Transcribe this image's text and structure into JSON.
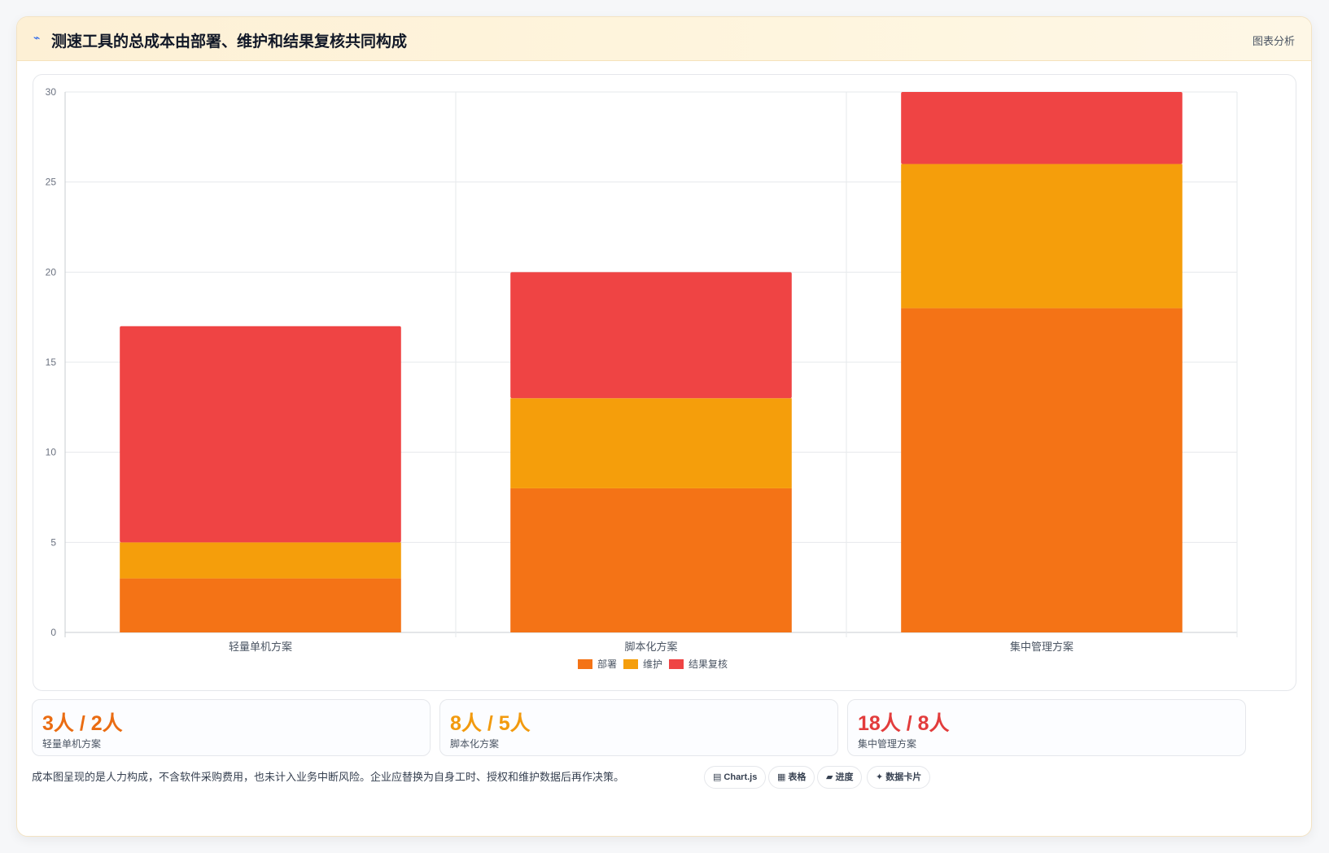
{
  "header": {
    "title": "测速工具的总成本由部署、维护和结果复核共同构成",
    "tag": "图表分析"
  },
  "chart_data": {
    "type": "bar",
    "stacked": true,
    "categories": [
      "轻量单机方案",
      "脚本化方案",
      "集中管理方案"
    ],
    "series": [
      {
        "name": "部署",
        "color": "#f47316",
        "values": [
          3,
          8,
          18
        ]
      },
      {
        "name": "维护",
        "color": "#f59e0b",
        "values": [
          2,
          5,
          8
        ]
      },
      {
        "name": "结果复核",
        "color": "#ef4444",
        "values": [
          12,
          7,
          4
        ]
      }
    ],
    "ylim": [
      0,
      30
    ],
    "yticks": [
      0,
      5,
      10,
      15,
      20,
      25,
      30
    ],
    "grid": true,
    "legend": "bottom"
  },
  "stats": [
    {
      "value": "3人 / 2人",
      "label": "轻量单机方案",
      "color": "#ea6c12"
    },
    {
      "value": "8人 / 5人",
      "label": "脚本化方案",
      "color": "#f29a0e"
    },
    {
      "value": "18人 / 8人",
      "label": "集中管理方案",
      "color": "#e23c3c"
    }
  ],
  "footer": {
    "note": "成本图呈现的是人力构成，不含软件采购费用，也未计入业务中断风险。企业应替换为自身工时、授权和维护数据后再作决策。",
    "chips": [
      {
        "icon": "▤",
        "icon_name": "chart-icon",
        "label": "Chart.js"
      },
      {
        "icon": "▦",
        "icon_name": "table-icon",
        "label": "表格"
      },
      {
        "icon": "▰",
        "icon_name": "progress-icon",
        "label": "进度"
      },
      {
        "icon": "✦",
        "icon_name": "sparkle-icon",
        "label": "数据卡片"
      }
    ]
  }
}
